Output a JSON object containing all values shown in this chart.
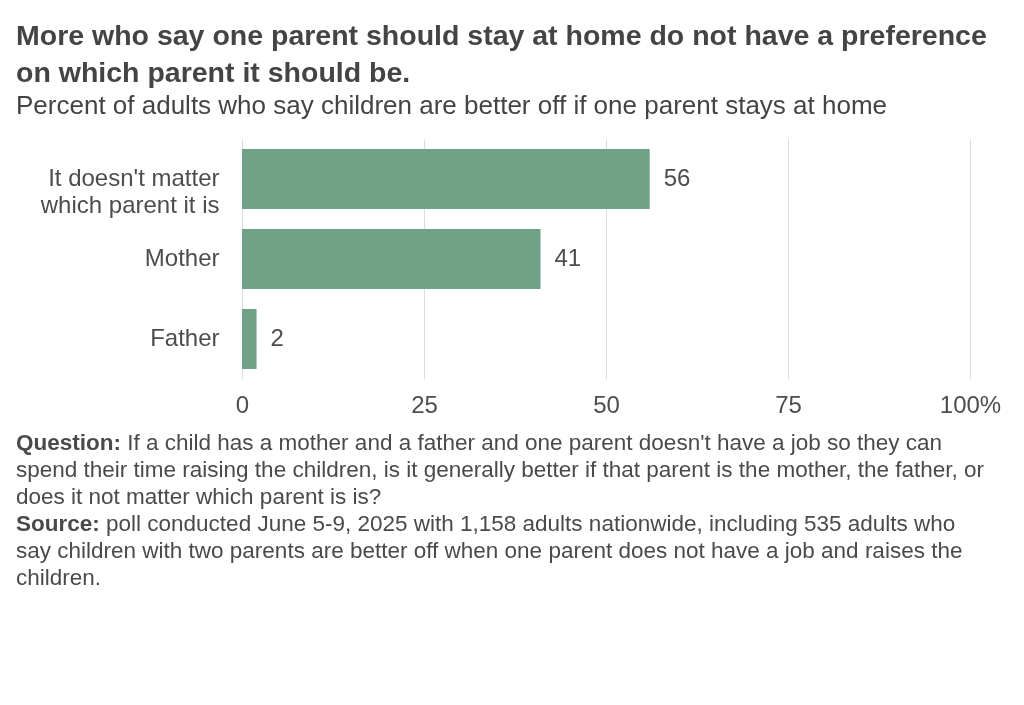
{
  "chart_data": {
    "type": "bar",
    "orientation": "horizontal",
    "title": "More who say one parent should stay at home do not have a preference on which parent it should be.",
    "subtitle": "Percent of adults who say children are better off if one parent stays at home",
    "categories": [
      "It doesn't matter which parent it is",
      "Mother",
      "Father"
    ],
    "values": [
      56,
      41,
      2
    ],
    "color": "#6fa287",
    "xlim": [
      0,
      100
    ],
    "xticks": [
      0,
      25,
      50,
      75,
      {
        "value": 100,
        "label": "100%"
      }
    ],
    "grid": "x",
    "data_labels": true,
    "annotations": [
      "Question: If a child has a mother and a father and one parent doesn't have a job so they can spend their time raising the children, is it generally better if that parent is the mother, the father, or does it not matter which parent is is?",
      "Source: poll conducted June 5-9, 2025 with 1,158 adults nationwide, including 535 adults who say children with two parents are better off when one parent does not have a job and raises the children."
    ]
  }
}
